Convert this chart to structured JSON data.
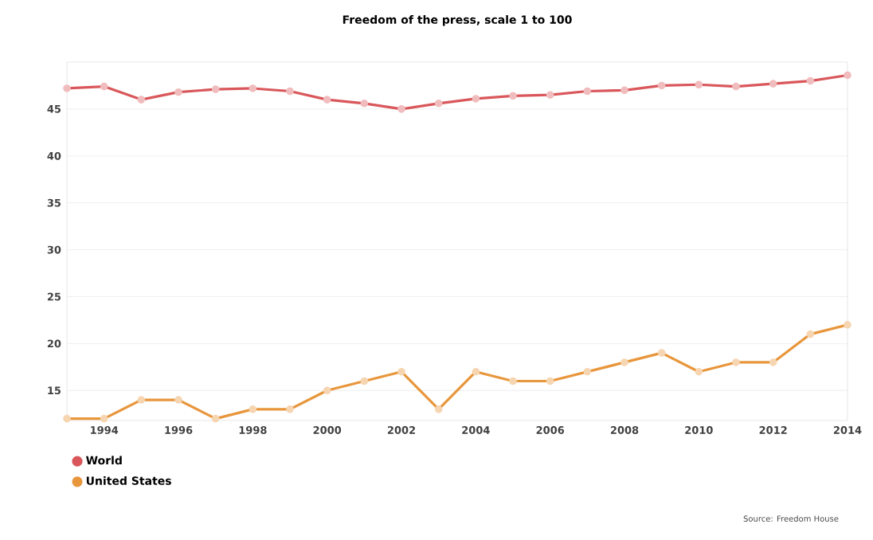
{
  "chart_data": {
    "type": "line",
    "title": "Freedom of the press, scale 1 to 100",
    "x": [
      1993,
      1994,
      1995,
      1996,
      1997,
      1998,
      1999,
      2000,
      2001,
      2002,
      2003,
      2004,
      2005,
      2006,
      2007,
      2008,
      2009,
      2010,
      2011,
      2012,
      2013,
      2014
    ],
    "series": [
      {
        "name": "World",
        "color": "#d9575b",
        "values": [
          47.2,
          47.4,
          46,
          46.8,
          47.1,
          47.2,
          46.9,
          46,
          45.6,
          45,
          45.6,
          46.1,
          46.4,
          46.5,
          46.9,
          47,
          47.5,
          47.6,
          47.4,
          47.7,
          48,
          48.6
        ]
      },
      {
        "name": "United States",
        "color": "#e8963c",
        "values": [
          12,
          12,
          14,
          14,
          12,
          13,
          13,
          15,
          16,
          17,
          13,
          17,
          16,
          16,
          17,
          18,
          19,
          17,
          18,
          18,
          21,
          22
        ]
      }
    ],
    "xlim": [
      1993,
      2014
    ],
    "xticks": [
      1994,
      1996,
      1998,
      2000,
      2002,
      2004,
      2006,
      2008,
      2010,
      2012,
      2014
    ],
    "ylim": [
      11.8,
      50
    ],
    "yticks": [
      15,
      20,
      25,
      30,
      35,
      40,
      45
    ],
    "grid": "y",
    "legend": "bottom left",
    "marker": "circle",
    "line_style": "solid",
    "annotations": [
      "Source: Freedom House"
    ]
  }
}
